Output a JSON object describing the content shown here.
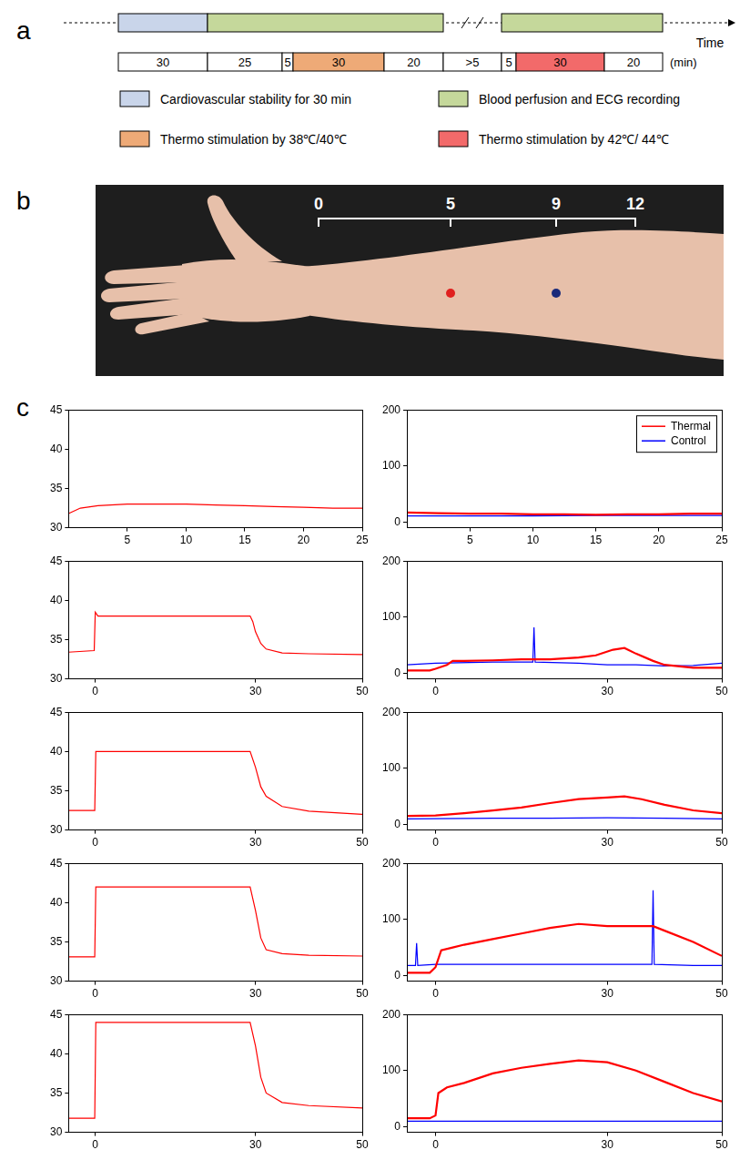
{
  "panel_a": {
    "letter": "a",
    "segments": [
      {
        "text": "30",
        "color": "#ffffff",
        "bar_color": "#c9d5ea"
      },
      {
        "text": "25",
        "color": "#ffffff",
        "bar_color": "#c5d89b"
      },
      {
        "text": "5",
        "color": "#ffffff",
        "bar_color": "#c5d89b"
      },
      {
        "text": "30",
        "color": "#eeaa77",
        "bar_color": "#c5d89b"
      },
      {
        "text": "20",
        "color": "#ffffff",
        "bar_color": "#c5d89b"
      },
      {
        "text": ">5",
        "color": "#ffffff",
        "bar_color": null
      },
      {
        "text": "5",
        "color": "#ffffff",
        "bar_color": "#c5d89b"
      },
      {
        "text": "30",
        "color": "#f26a6a",
        "bar_color": "#c5d89b"
      },
      {
        "text": "20",
        "color": "#ffffff",
        "bar_color": "#c5d89b"
      }
    ],
    "unit": "(min)",
    "axis_label": "Time",
    "legend": [
      {
        "text": "Cardiovascular stability for 30 min",
        "color": "#c9d5ea"
      },
      {
        "text": "Blood perfusion and ECG recording",
        "color": "#c5d89b"
      },
      {
        "text": "Thermo stimulation by 38℃/40℃",
        "color": "#eeaa77"
      },
      {
        "text": "Thermo stimulation by 42℃/ 44℃",
        "color": "#f26a6a"
      }
    ]
  },
  "panel_b": {
    "letter": "b",
    "scale_ticks": [
      0,
      5,
      9,
      12
    ],
    "points": [
      {
        "position": 5,
        "color": "#e0201f"
      },
      {
        "position": 9,
        "color": "#1a2a7a"
      }
    ]
  },
  "panel_c": {
    "letter": "c"
  },
  "chart_data": [
    {
      "type": "line",
      "grid": false,
      "xlim": [
        0,
        25
      ],
      "xticks": [
        5,
        10,
        15,
        20,
        25
      ],
      "ylim": [
        30,
        45
      ],
      "yticks": [
        30,
        35,
        40,
        45
      ],
      "series": [
        {
          "color": "#ff0000",
          "x": [
            0,
            1,
            2.5,
            5,
            7.5,
            10,
            12.5,
            15,
            17.5,
            20,
            22.5,
            25
          ],
          "values": [
            31.8,
            32.5,
            32.8,
            33,
            33,
            33,
            32.9,
            32.8,
            32.7,
            32.6,
            32.5,
            32.5
          ]
        }
      ]
    },
    {
      "type": "line",
      "grid": false,
      "legend": "upper right",
      "xlim": [
        0,
        25
      ],
      "xticks": [
        5,
        10,
        15,
        20,
        25
      ],
      "ylim": [
        -10,
        200
      ],
      "yticks": [
        0,
        100,
        200
      ],
      "series": [
        {
          "name": "Thermal",
          "color": "#ff0000",
          "x": [
            0,
            2.5,
            5,
            7.5,
            10,
            12.5,
            15,
            17.5,
            20,
            22.5,
            25
          ],
          "values": [
            17,
            16,
            15,
            15,
            14,
            14,
            13,
            14,
            14,
            15,
            15
          ]
        },
        {
          "name": "Control",
          "color": "#0000ff",
          "x": [
            0,
            5,
            10,
            15,
            20,
            25
          ],
          "values": [
            11,
            11,
            11,
            12,
            12,
            12
          ]
        }
      ]
    },
    {
      "type": "line",
      "grid": false,
      "xlim": [
        -5,
        50
      ],
      "xticks": [
        0,
        30,
        50
      ],
      "ylim": [
        30,
        45
      ],
      "yticks": [
        30,
        35,
        40,
        45
      ],
      "series": [
        {
          "color": "#ff0000",
          "x": [
            -5,
            -0.2,
            0,
            0.5,
            29,
            29.5,
            30,
            31,
            32,
            35,
            40,
            50
          ],
          "values": [
            33.4,
            33.6,
            38.5,
            38,
            38,
            37.3,
            36,
            34.5,
            33.8,
            33.3,
            33.2,
            33.1
          ]
        }
      ]
    },
    {
      "type": "line",
      "grid": false,
      "xlim": [
        -5,
        50
      ],
      "xticks": [
        0,
        30,
        50
      ],
      "ylim": [
        -10,
        200
      ],
      "yticks": [
        0,
        100,
        200
      ],
      "series": [
        {
          "color": "#ff0000",
          "x": [
            -5,
            -1,
            0,
            2,
            3,
            5,
            10,
            15,
            20,
            25,
            28,
            31,
            33,
            35,
            38,
            40,
            45,
            50
          ],
          "values": [
            5,
            5,
            8,
            15,
            22,
            22,
            23,
            25,
            25,
            28,
            32,
            42,
            45,
            35,
            22,
            15,
            10,
            10
          ]
        },
        {
          "color": "#0000ff",
          "x": [
            -5,
            0,
            10,
            17,
            17.2,
            17.4,
            25,
            30,
            35,
            40,
            45,
            50
          ],
          "values": [
            15,
            18,
            20,
            20,
            82,
            20,
            18,
            15,
            15,
            13,
            14,
            18
          ]
        }
      ]
    },
    {
      "type": "line",
      "grid": false,
      "xlim": [
        -5,
        50
      ],
      "xticks": [
        0,
        30,
        50
      ],
      "ylim": [
        30,
        45
      ],
      "yticks": [
        30,
        35,
        40,
        45
      ],
      "series": [
        {
          "color": "#ff0000",
          "x": [
            -5,
            -0.1,
            0.1,
            29,
            30,
            31,
            32,
            35,
            40,
            50
          ],
          "values": [
            32.5,
            32.5,
            40,
            40,
            38,
            35.5,
            34.3,
            33,
            32.4,
            32
          ]
        }
      ]
    },
    {
      "type": "line",
      "grid": false,
      "xlim": [
        -5,
        50
      ],
      "xticks": [
        0,
        30,
        50
      ],
      "ylim": [
        -10,
        200
      ],
      "yticks": [
        0,
        100,
        200
      ],
      "series": [
        {
          "color": "#ff0000",
          "x": [
            -5,
            0,
            5,
            10,
            15,
            20,
            25,
            30,
            33,
            36,
            40,
            45,
            50
          ],
          "values": [
            15,
            16,
            20,
            25,
            30,
            38,
            45,
            48,
            50,
            45,
            35,
            25,
            20
          ]
        },
        {
          "color": "#0000ff",
          "x": [
            -5,
            10,
            20,
            30,
            40,
            50
          ],
          "values": [
            10,
            11,
            11,
            12,
            11,
            10
          ]
        }
      ]
    },
    {
      "type": "line",
      "grid": false,
      "xlim": [
        -5,
        50
      ],
      "xticks": [
        0,
        30,
        50
      ],
      "ylim": [
        30,
        45
      ],
      "yticks": [
        30,
        35,
        40,
        45
      ],
      "series": [
        {
          "color": "#ff0000",
          "x": [
            -5,
            -0.1,
            0.1,
            29,
            30,
            31,
            32,
            35,
            40,
            50
          ],
          "values": [
            33.1,
            33.1,
            42,
            42,
            39,
            35.5,
            34,
            33.5,
            33.3,
            33.2
          ]
        }
      ]
    },
    {
      "type": "line",
      "grid": false,
      "xlim": [
        -5,
        50
      ],
      "xticks": [
        0,
        30,
        50
      ],
      "ylim": [
        -10,
        200
      ],
      "yticks": [
        0,
        100,
        200
      ],
      "series": [
        {
          "color": "#ff0000",
          "x": [
            -5,
            -1,
            0,
            1,
            3,
            5,
            10,
            15,
            20,
            25,
            30,
            35,
            38,
            40,
            45,
            50
          ],
          "values": [
            5,
            5,
            15,
            45,
            50,
            55,
            65,
            75,
            85,
            92,
            88,
            88,
            88,
            80,
            60,
            35
          ]
        },
        {
          "color": "#0000ff",
          "x": [
            -5,
            -3.5,
            -3.3,
            -3.1,
            0,
            10,
            20,
            30,
            37.8,
            38,
            38.2,
            45,
            50
          ],
          "values": [
            18,
            18,
            58,
            18,
            20,
            20,
            20,
            20,
            20,
            152,
            20,
            18,
            18
          ]
        }
      ]
    },
    {
      "type": "line",
      "grid": false,
      "xlim": [
        -5,
        50
      ],
      "xticks": [
        0,
        30,
        50
      ],
      "ylim": [
        30,
        45
      ],
      "yticks": [
        30,
        35,
        40,
        45
      ],
      "series": [
        {
          "color": "#ff0000",
          "x": [
            -5,
            -0.1,
            0.1,
            29,
            30,
            31,
            32,
            35,
            40,
            50
          ],
          "values": [
            31.8,
            31.8,
            44,
            44,
            41,
            37,
            35,
            33.8,
            33.4,
            33.1
          ]
        }
      ]
    },
    {
      "type": "line",
      "grid": false,
      "xlim": [
        -5,
        50
      ],
      "xticks": [
        0,
        30,
        50
      ],
      "ylim": [
        -10,
        200
      ],
      "yticks": [
        0,
        100,
        200
      ],
      "series": [
        {
          "color": "#ff0000",
          "x": [
            -5,
            -1,
            0,
            0.5,
            2,
            5,
            10,
            15,
            20,
            25,
            30,
            35,
            40,
            45,
            50
          ],
          "values": [
            15,
            15,
            20,
            60,
            70,
            78,
            95,
            105,
            112,
            118,
            115,
            100,
            80,
            60,
            45
          ]
        },
        {
          "color": "#0000ff",
          "x": [
            -5,
            10,
            20,
            30,
            40,
            50
          ],
          "values": [
            10,
            10,
            10,
            10,
            10,
            10
          ]
        }
      ]
    }
  ]
}
